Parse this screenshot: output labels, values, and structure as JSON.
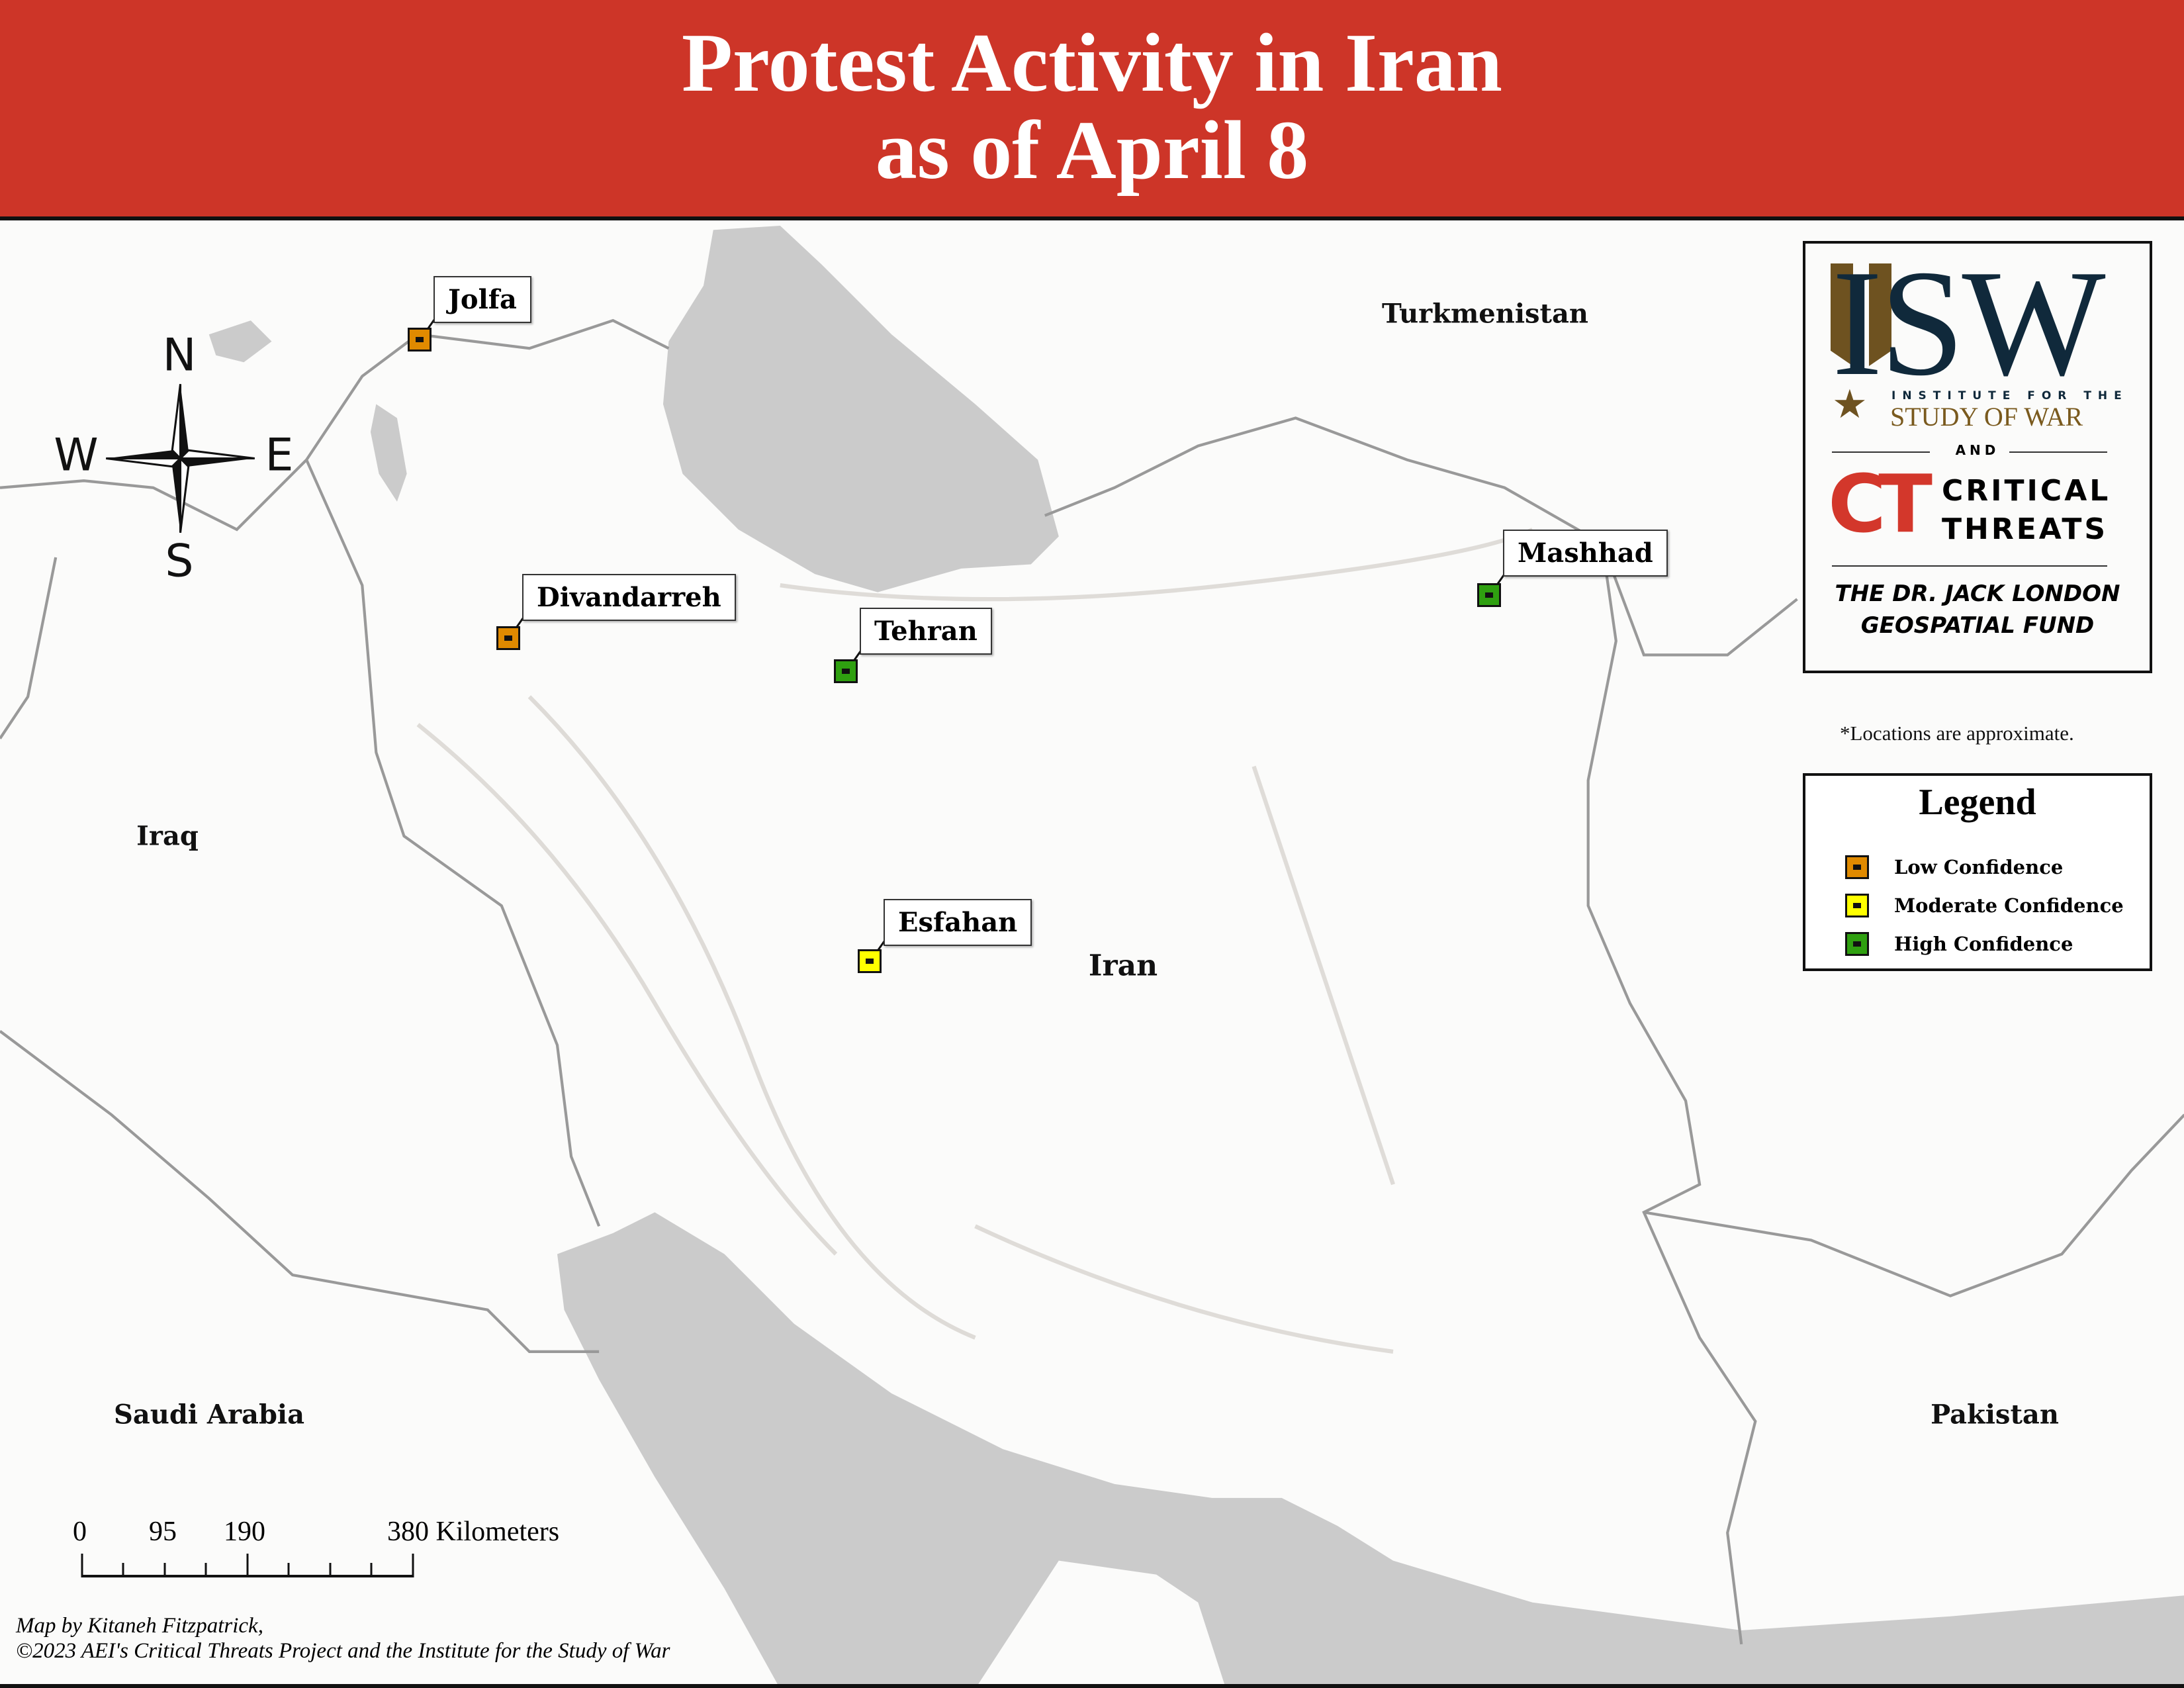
{
  "header": {
    "title_line1": "Protest Activity in Iran",
    "title_line2": "as of April 8",
    "background": "#cd3528"
  },
  "countries": {
    "turkmenistan": "Turkmenistan",
    "iraq": "Iraq",
    "iran": "Iran",
    "saudi_arabia": "Saudi Arabia",
    "pakistan": "Pakistan"
  },
  "compass": {
    "n": "N",
    "s": "S",
    "e": "E",
    "w": "W"
  },
  "locations": [
    {
      "name": "Jolfa",
      "confidence": "Low Confidence"
    },
    {
      "name": "Divandarreh",
      "confidence": "Low Confidence"
    },
    {
      "name": "Tehran",
      "confidence": "High Confidence"
    },
    {
      "name": "Mashhad",
      "confidence": "High Confidence"
    },
    {
      "name": "Esfahan",
      "confidence": "Moderate Confidence"
    }
  ],
  "logo": {
    "isw": "ISW",
    "isw_sub1": "INSTITUTE FOR THE",
    "isw_sub2": "STUDY OF WAR",
    "and": "AND",
    "ct": "CT",
    "ct_line1": "CRITICAL",
    "ct_line2": "THREATS",
    "fund_line1": "THE DR. JACK LONDON",
    "fund_line2": "GEOSPATIAL FUND"
  },
  "note": "*Locations are approximate.",
  "legend": {
    "title": "Legend",
    "items": [
      {
        "label": "Low Confidence",
        "color": "#e08a00"
      },
      {
        "label": "Moderate Confidence",
        "color": "#ffff00"
      },
      {
        "label": "High Confidence",
        "color": "#2fa010"
      }
    ]
  },
  "scale_bar": {
    "ticks": [
      "0",
      "95",
      "190",
      "380 Kilometers"
    ]
  },
  "credits": {
    "line1": "Map by Kitaneh Fitzpatrick,",
    "line2": "©2023 AEI's Critical Threats Project and the Institute for the Study of War"
  }
}
